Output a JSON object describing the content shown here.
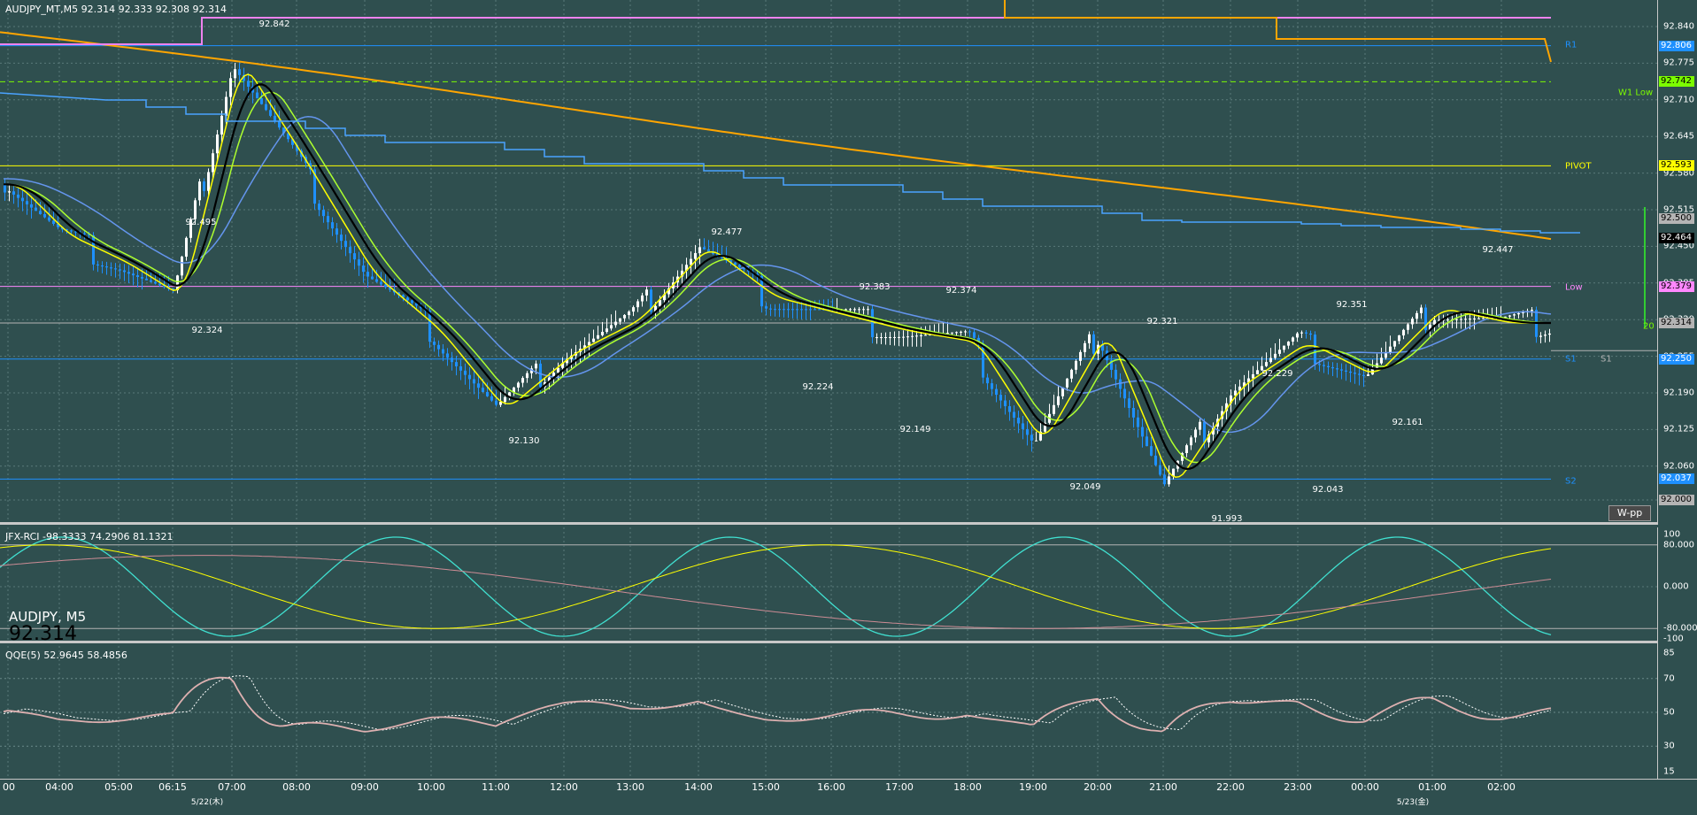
{
  "header": {
    "main": "AUDJPY_MT,M5  92.314 92.333 92.308 92.314",
    "rci": "JFX-RCI -98.3333 74.2906 81.1321",
    "qqe": "QQE(5) 52.9645 58.4856"
  },
  "overlay": {
    "symbol": "AUDJPY, M5",
    "price": "92.314"
  },
  "wpp_button": "W-pp",
  "price_axis": [
    "92.840",
    "92.775",
    "92.710",
    "92.645",
    "92.580",
    "92.515",
    "92.450",
    "92.385",
    "92.320",
    "92.255",
    "92.190",
    "92.125",
    "92.060",
    "92.000"
  ],
  "price_tags": [
    {
      "text": "92.806",
      "bg": "#1e90ff",
      "fg": "#ffffff"
    },
    {
      "text": "92.742",
      "bg": "#7cfc00",
      "fg": "#000000"
    },
    {
      "text": "92.593",
      "bg": "#ffff00",
      "fg": "#000000"
    },
    {
      "text": "92.500",
      "bg": "#b4b4b4",
      "fg": "#000000"
    },
    {
      "text": "92.464",
      "bg": "#000000",
      "fg": "#ffffff"
    },
    {
      "text": "92.379",
      "bg": "#ff88ff",
      "fg": "#000000"
    },
    {
      "text": "92.314",
      "bg": "#b4b4b4",
      "fg": "#000000"
    },
    {
      "text": "92.250",
      "bg": "#1e90ff",
      "fg": "#ffffff"
    },
    {
      "text": "92.037",
      "bg": "#1e90ff",
      "fg": "#ffffff"
    },
    {
      "text": "92.000",
      "bg": "#b4b4b4",
      "fg": "#000000"
    }
  ],
  "levels": {
    "r1": "R1",
    "w1_low": "W1 Low",
    "pivot": "PIVOT",
    "low": "Low",
    "s1": "S1",
    "s1b": "S1",
    "s2": "S2",
    "count": "20"
  },
  "price_labels": [
    "92.842",
    "92.495",
    "92.324",
    "92.130",
    "92.477",
    "92.224",
    "92.383",
    "92.374",
    "92.149",
    "92.049",
    "92.321",
    "91.993",
    "92.229",
    "92.043",
    "92.351",
    "92.161",
    "92.447"
  ],
  "rci_axis": [
    "100",
    "80.000",
    "0.000",
    "-80.000",
    "-100"
  ],
  "qqe_axis": [
    "85",
    "70",
    "50",
    "30",
    "15"
  ],
  "time_axis": [
    "00",
    "04:00",
    "05:00",
    "06:15",
    "07:00",
    "08:00",
    "09:00",
    "10:00",
    "11:00",
    "12:00",
    "13:00",
    "14:00",
    "15:00",
    "16:00",
    "17:00",
    "18:00",
    "19:00",
    "20:00",
    "21:00",
    "22:00",
    "23:00",
    "00:00",
    "01:00",
    "02:00"
  ],
  "date_labels": [
    "5/22(木)",
    "5/23(金)"
  ],
  "colors": {
    "background": "#2f4f4f",
    "bull_candle": "#ffffff",
    "bear_candle": "#1e90ff",
    "sma_black": "#000000",
    "ma_yellow": "#ffff00",
    "ma_green": "#adff2f",
    "ma_blue": "#6495ed",
    "ma_orange": "#ffa500",
    "rci_cyan": "#40e0d0",
    "rci_pink": "#cd8c95",
    "qqe_pink": "#ddb0b0"
  },
  "chart_data": {
    "type": "candlestick",
    "symbol": "AUDJPY",
    "timeframe": "M5",
    "ylim": [
      91.97,
      92.87
    ],
    "close_series": [
      {
        "t": "03:00",
        "v": 92.56
      },
      {
        "t": "04:00",
        "v": 92.47
      },
      {
        "t": "05:00",
        "v": 92.42
      },
      {
        "t": "06:15",
        "v": 92.36
      },
      {
        "t": "07:00",
        "v": 92.78
      },
      {
        "t": "08:00",
        "v": 92.6
      },
      {
        "t": "09:00",
        "v": 92.4
      },
      {
        "t": "10:00",
        "v": 92.3
      },
      {
        "t": "11:00",
        "v": 92.16
      },
      {
        "t": "12:00",
        "v": 92.26
      },
      {
        "t": "13:00",
        "v": 92.32
      },
      {
        "t": "14:00",
        "v": 92.45
      },
      {
        "t": "15:00",
        "v": 92.36
      },
      {
        "t": "16:00",
        "v": 92.33
      },
      {
        "t": "17:00",
        "v": 92.3
      },
      {
        "t": "18:00",
        "v": 92.28
      },
      {
        "t": "19:00",
        "v": 92.1
      },
      {
        "t": "20:00",
        "v": 92.3
      },
      {
        "t": "21:00",
        "v": 92.02
      },
      {
        "t": "22:00",
        "v": 92.2
      },
      {
        "t": "23:00",
        "v": 92.28
      },
      {
        "t": "00:00",
        "v": 92.22
      },
      {
        "t": "01:00",
        "v": 92.34
      },
      {
        "t": "02:00",
        "v": 92.314
      }
    ],
    "rci_ylim": [
      -100,
      100
    ],
    "qqe_ylim": [
      15,
      85
    ]
  }
}
